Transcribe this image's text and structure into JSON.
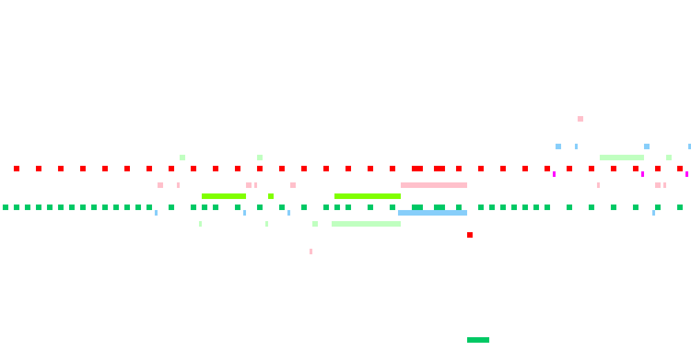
{
  "colors": {
    "background": "#ffffff",
    "red": "#ff0000",
    "green": "#00c864",
    "pink": "#ffc0cb",
    "light_green": "#c0ffc0",
    "light_blue": "#87cefa",
    "lime": "#80ff00",
    "magenta": "#ff00ff"
  }
}
